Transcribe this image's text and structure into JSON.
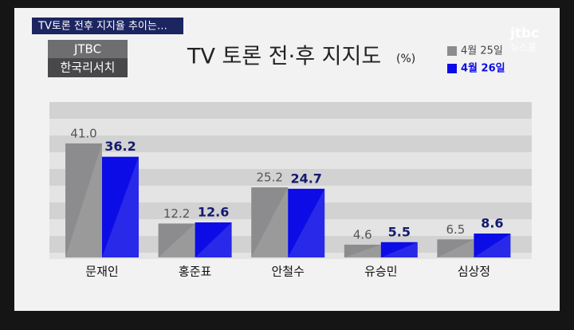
{
  "header": {
    "banner": "TV토론 전후 지지율 추이는…",
    "source_top": "JTBC",
    "source_bottom": "한국리서치",
    "logo_top": "jtbc",
    "logo_bottom": "뉴스룸"
  },
  "chart_data": {
    "type": "bar",
    "title": "TV 토론 전·후 지지도",
    "unit": "(%)",
    "categories": [
      "문재인",
      "홍준표",
      "안철수",
      "유승민",
      "심상정"
    ],
    "series": [
      {
        "name": "4월 25일",
        "color": "#8c8c8e",
        "values": [
          41,
          12.2,
          25.2,
          4.6,
          6.5
        ],
        "value_labels": [
          "41.0",
          "12.2",
          "25.2",
          "4.6",
          "6.5"
        ]
      },
      {
        "name": "4월 26일",
        "color": "#0c0ce6",
        "values": [
          36.2,
          12.6,
          24.7,
          5.5,
          8.6
        ]
      }
    ]
  }
}
